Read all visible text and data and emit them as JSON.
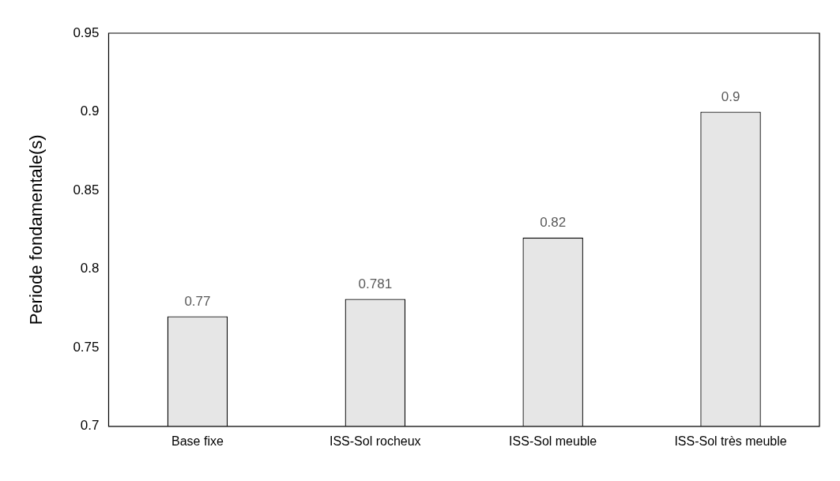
{
  "chart_data": {
    "type": "bar",
    "ylabel": "Periode fondamentale(s)",
    "categories": [
      "Base fixe",
      "ISS-Sol rocheux",
      "ISS-Sol meuble",
      "ISS-Sol très meuble"
    ],
    "values": [
      0.77,
      0.781,
      0.82,
      0.9
    ],
    "color": "#e6e6e6",
    "ylim": [
      0.7,
      0.95
    ],
    "yticks": [
      0.7,
      0.75,
      0.8,
      0.85,
      0.9,
      0.95
    ],
    "grid": false,
    "legend": false,
    "data_labels": true
  }
}
